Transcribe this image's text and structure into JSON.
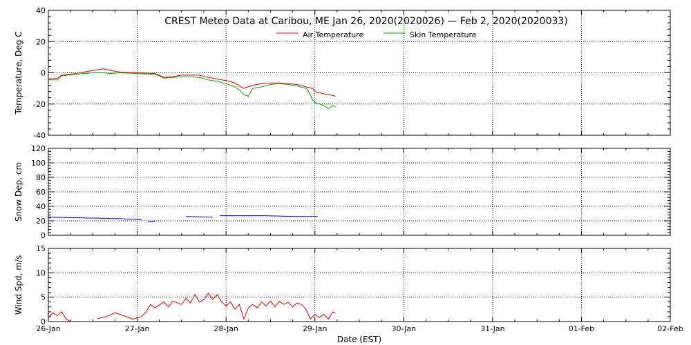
{
  "title": "CREST Meteo Data at Caribou, ME   Jan 26, 2020(2020026) — Feb  2, 2020(2020033)",
  "x_axis": {
    "label": "Date (EST)",
    "ticks": [
      "26-Jan",
      "27-Jan",
      "28-Jan",
      "29-Jan",
      "30-Jan",
      "31-Jan",
      "01-Feb",
      "02-Feb"
    ]
  },
  "colors": {
    "air": "#dd0000",
    "skin": "#00aa00",
    "snow": "#0000aa",
    "wind": "#dd0000"
  },
  "chart_data": [
    {
      "type": "line",
      "ylabel": "Temperature, Deg C",
      "ylim": [
        -40,
        40
      ],
      "yticks": [
        40,
        20,
        0,
        -20,
        -40
      ],
      "x_unit": "days since 26-Jan 00:00 EST",
      "legend_position": "top-center",
      "series": [
        {
          "name": "Air Temperature",
          "x": [
            0,
            0.1,
            0.15,
            0.3,
            0.5,
            0.62,
            0.7,
            0.8,
            1.0,
            1.2,
            1.25,
            1.3,
            1.4,
            1.5,
            1.6,
            1.7,
            1.8,
            1.9,
            2.0,
            2.1,
            2.15,
            2.2,
            2.3,
            2.4,
            2.5,
            2.6,
            2.7,
            2.8,
            2.9,
            2.97,
            3.0,
            3.1,
            3.2,
            3.23
          ],
          "values": [
            -4,
            -3.5,
            -1.5,
            -0.5,
            1.5,
            2.5,
            1.5,
            0.5,
            0,
            -0.5,
            -1.5,
            -3,
            -2.5,
            -1.5,
            -1.5,
            -1.5,
            -3,
            -4,
            -5,
            -6.5,
            -8.5,
            -10,
            -8,
            -7,
            -6.5,
            -6.5,
            -7,
            -7.5,
            -9,
            -10,
            -12,
            -13.5,
            -14.5,
            -15
          ]
        },
        {
          "name": "Skin Temperature",
          "x": [
            0,
            0.1,
            0.15,
            0.3,
            0.5,
            0.62,
            0.7,
            0.8,
            1.0,
            1.2,
            1.25,
            1.3,
            1.4,
            1.5,
            1.6,
            1.7,
            1.8,
            1.9,
            2.0,
            2.1,
            2.15,
            2.2,
            2.25,
            2.3,
            2.4,
            2.5,
            2.6,
            2.7,
            2.8,
            2.9,
            2.93,
            2.97,
            3.0,
            3.1,
            3.15,
            3.2,
            3.23
          ],
          "values": [
            -4.5,
            -4.5,
            -2,
            -1,
            0,
            0,
            -0.5,
            0,
            -0.5,
            -1,
            -2,
            -3.5,
            -3,
            -2.5,
            -2.5,
            -3,
            -4.5,
            -5.5,
            -7,
            -9,
            -11,
            -14,
            -15,
            -10,
            -9,
            -7.5,
            -7,
            -7.5,
            -8.5,
            -10,
            -12,
            -17,
            -19,
            -21,
            -23,
            -21,
            -22
          ]
        }
      ]
    },
    {
      "type": "line",
      "ylabel": "Snow Dep, cm",
      "ylim": [
        0,
        120
      ],
      "yticks": [
        120,
        100,
        80,
        60,
        40,
        20,
        0
      ],
      "x_unit": "days since 26-Jan 00:00 EST",
      "series": [
        {
          "segments": [
            {
              "x": [
                0,
                0.4,
                0.8,
                1.0,
                1.05
              ],
              "values": [
                25,
                24,
                23,
                22,
                21
              ]
            },
            {
              "x": [
                1.12,
                1.2
              ],
              "values": [
                19,
                19
              ]
            },
            {
              "x": [
                1.55,
                1.85
              ],
              "values": [
                26,
                25
              ]
            },
            {
              "x": [
                1.93,
                2.4,
                2.8,
                3.03
              ],
              "values": [
                27,
                27,
                26,
                26
              ]
            }
          ]
        }
      ]
    },
    {
      "type": "line",
      "ylabel": "Wind Spd, m/s",
      "ylim": [
        0,
        15
      ],
      "yticks": [
        15,
        10,
        5,
        0
      ],
      "x_unit": "days since 26-Jan 00:00 EST",
      "series": [
        {
          "segments": [
            {
              "x": [
                0,
                0.05,
                0.1,
                0.15,
                0.2,
                0.25
              ],
              "values": [
                0.8,
                1.8,
                1.2,
                2.0,
                0.5,
                0
              ]
            },
            {
              "x": [
                0.55,
                0.65,
                0.75,
                0.85,
                0.95,
                1.05,
                1.1,
                1.15,
                1.2,
                1.3,
                1.35,
                1.4,
                1.5,
                1.55,
                1.6,
                1.65,
                1.7,
                1.75,
                1.8,
                1.85,
                1.9,
                1.95,
                2.0,
                2.05,
                2.1,
                2.15,
                2.2,
                2.25,
                2.3,
                2.35,
                2.4,
                2.45,
                2.5,
                2.55,
                2.6,
                2.65,
                2.7,
                2.75,
                2.8,
                2.85,
                2.9,
                2.95,
                3.0,
                3.05,
                3.1,
                3.15,
                3.2,
                3.23
              ],
              "values": [
                0.6,
                1.0,
                1.8,
                1.2,
                0.5,
                1.0,
                2.0,
                3.5,
                2.8,
                4.0,
                3.0,
                4.2,
                3.5,
                4.8,
                3.8,
                5.5,
                4.0,
                4.5,
                5.8,
                4.5,
                5.5,
                4.0,
                3.2,
                4.0,
                2.5,
                3.5,
                0.5,
                2.8,
                3.5,
                2.8,
                4.0,
                3.2,
                4.2,
                3.0,
                4.2,
                3.5,
                4.0,
                3.0,
                3.8,
                3.5,
                2.5,
                0.5,
                1.5,
                0.8,
                1.5,
                0.5,
                2.0,
                1.8
              ]
            }
          ]
        }
      ]
    }
  ]
}
